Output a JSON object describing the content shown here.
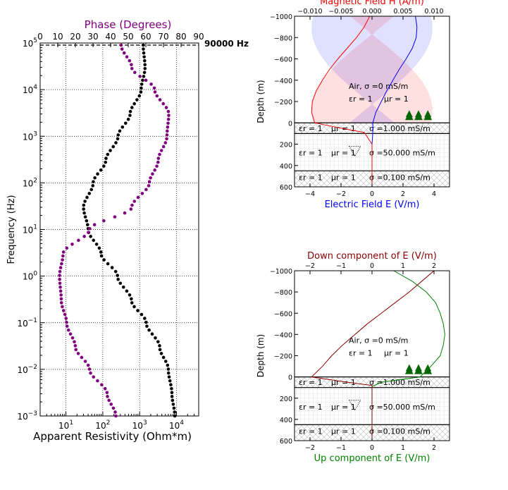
{
  "chart_data": [
    {
      "type": "scatter",
      "panel": "mt-sounding",
      "top_title": "Phase (Degrees)",
      "top_title_color": "#800080",
      "xlabel": "Apparent Resistivity (Ohm*m)",
      "ylabel": "Frequency (Hz)",
      "frequency_marker_label": "90000 Hz",
      "x_log_scale": true,
      "y_log_scale": true,
      "xlim": [
        2,
        40000
      ],
      "ylim": [
        0.001,
        100000
      ],
      "phase_lim": [
        0,
        90
      ],
      "x_tick_labels": [
        "10^1",
        "10^2",
        "10^3",
        "10^4"
      ],
      "y_tick_labels": [
        "10^-3",
        "10^-2",
        "10^-1",
        "10^0",
        "10^1",
        "10^2",
        "10^3",
        "10^4",
        "10^5"
      ],
      "phase_tick_labels": [
        "0",
        "10",
        "20",
        "30",
        "40",
        "50",
        "60",
        "70",
        "80",
        "90"
      ],
      "grid": true,
      "series": [
        {
          "color": "#000000",
          "x_axis": "apparent_resistivity",
          "points": [
            {
              "f": 0.001,
              "v": 9000
            },
            {
              "f": 0.003,
              "v": 7500
            },
            {
              "f": 0.01,
              "v": 6000
            },
            {
              "f": 0.03,
              "v": 3500
            },
            {
              "f": 0.1,
              "v": 1500
            },
            {
              "f": 0.3,
              "v": 600
            },
            {
              "f": 1,
              "v": 250
            },
            {
              "f": 3,
              "v": 90
            },
            {
              "f": 10,
              "v": 40
            },
            {
              "f": 30,
              "v": 30
            },
            {
              "f": 100,
              "v": 55
            },
            {
              "f": 300,
              "v": 120
            },
            {
              "f": 1000,
              "v": 260
            },
            {
              "f": 3000,
              "v": 550
            },
            {
              "f": 10000,
              "v": 1100
            },
            {
              "f": 30000,
              "v": 1400
            },
            {
              "f": 90000,
              "v": 1250
            }
          ]
        },
        {
          "color": "#800080",
          "x_axis": "phase",
          "points": [
            {
              "f": 0.001,
              "v": 43
            },
            {
              "f": 0.003,
              "v": 38
            },
            {
              "f": 0.01,
              "v": 28
            },
            {
              "f": 0.03,
              "v": 20
            },
            {
              "f": 0.1,
              "v": 15
            },
            {
              "f": 0.3,
              "v": 12
            },
            {
              "f": 1,
              "v": 11
            },
            {
              "f": 3,
              "v": 13
            },
            {
              "f": 10,
              "v": 28
            },
            {
              "f": 30,
              "v": 52
            },
            {
              "f": 100,
              "v": 62
            },
            {
              "f": 300,
              "v": 67
            },
            {
              "f": 1000,
              "v": 72
            },
            {
              "f": 3000,
              "v": 73
            },
            {
              "f": 10000,
              "v": 65
            },
            {
              "f": 30000,
              "v": 52
            },
            {
              "f": 90000,
              "v": 46
            }
          ]
        }
      ]
    },
    {
      "type": "line",
      "panel": "fields-top",
      "top_title": "Magnetic Field H (A/m)",
      "top_title_color": "#ff0000",
      "xlabel": "Electric Field E (V/m)",
      "xlabel_color": "#0000ff",
      "ylabel": "Depth (m)",
      "xlim": [
        -5,
        5
      ],
      "ylim": [
        600,
        -1000
      ],
      "toplim": [
        -0.0125,
        0.0125
      ],
      "x_tick_labels": [
        "−4",
        "−2",
        "0",
        "2",
        "4"
      ],
      "top_tick_labels": [
        "−0.010",
        "−0.005",
        "0.000",
        "0.005",
        "0.010"
      ],
      "y_tick_labels": [
        "−1000",
        "−800",
        "−600",
        "−400",
        "−200",
        "0",
        "200",
        "400",
        "600"
      ],
      "series": [
        {
          "name": "",
          "color": "#0000ff",
          "axis": "bottom",
          "points": [
            [
              2.8,
              -1000
            ],
            [
              2.9,
              -900
            ],
            [
              2.85,
              -800
            ],
            [
              2.6,
              -700
            ],
            [
              2.2,
              -600
            ],
            [
              1.75,
              -500
            ],
            [
              1.35,
              -400
            ],
            [
              0.95,
              -300
            ],
            [
              0.6,
              -200
            ],
            [
              0.25,
              -100
            ],
            [
              0.05,
              0
            ],
            [
              0.05,
              100
            ],
            [
              0.0,
              200
            ],
            [
              0.0,
              450
            ],
            [
              0.0,
              600
            ]
          ]
        },
        {
          "name": "",
          "color": "#ff0000",
          "axis": "bottom",
          "points": [
            [
              -0.15,
              -1000
            ],
            [
              -0.5,
              -900
            ],
            [
              -1.0,
              -800
            ],
            [
              -1.6,
              -700
            ],
            [
              -2.2,
              -600
            ],
            [
              -2.75,
              -500
            ],
            [
              -3.2,
              -400
            ],
            [
              -3.6,
              -300
            ],
            [
              -3.85,
              -200
            ],
            [
              -3.9,
              -100
            ],
            [
              -3.7,
              0
            ],
            [
              -2.0,
              50
            ],
            [
              -0.5,
              90
            ],
            [
              0.0,
              200
            ],
            [
              0.0,
              600
            ]
          ]
        }
      ],
      "layer_labels": {
        "air": {
          "name": "Air, σ =0 mS/m",
          "eps": "εr = 1",
          "mu": "μr = 1"
        },
        "layers": [
          {
            "eps": "εr = 1",
            "mu": "μr = 1",
            "sigma": "σ =1.000 mS/m"
          },
          {
            "eps": "εr = 1",
            "mu": "μr = 1",
            "sigma": "σ =50.000 mS/m"
          },
          {
            "eps": "εr = 1",
            "mu": "μr = 1",
            "sigma": "σ =0.100 mS/m"
          }
        ]
      },
      "layer_boundaries": [
        0,
        100,
        450
      ]
    },
    {
      "type": "line",
      "panel": "fields-bottom",
      "top_title": "Down component of E (V/m)",
      "top_title_color": "#8b0000",
      "xlabel": "Up component of E (V/m)",
      "xlabel_color": "#008000",
      "ylabel": "Depth (m)",
      "xlim": [
        -2.5,
        2.5
      ],
      "ylim": [
        600,
        -1000
      ],
      "toplim": [
        -2.5,
        2.5
      ],
      "x_tick_labels": [
        "−2",
        "−1",
        "0",
        "1",
        "2"
      ],
      "top_tick_labels": [
        "−2",
        "−1",
        "0",
        "1",
        "2"
      ],
      "y_tick_labels": [
        "−1000",
        "−800",
        "−600",
        "−400",
        "−200",
        "0",
        "200",
        "400",
        "600"
      ],
      "series": [
        {
          "name": "",
          "color": "#008000",
          "axis": "bottom",
          "points": [
            [
              0.7,
              -1000
            ],
            [
              1.3,
              -900
            ],
            [
              1.75,
              -800
            ],
            [
              2.05,
              -700
            ],
            [
              2.2,
              -600
            ],
            [
              2.3,
              -500
            ],
            [
              2.35,
              -400
            ],
            [
              2.3,
              -300
            ],
            [
              2.2,
              -200
            ],
            [
              1.9,
              -100
            ],
            [
              1.55,
              0
            ],
            [
              0.3,
              50
            ],
            [
              0.0,
              90
            ],
            [
              0.0,
              600
            ]
          ]
        },
        {
          "name": "",
          "color": "#8b0000",
          "axis": "top",
          "points": [
            [
              2.0,
              -1000
            ],
            [
              1.6,
              -900
            ],
            [
              1.2,
              -800
            ],
            [
              0.75,
              -700
            ],
            [
              0.3,
              -600
            ],
            [
              -0.15,
              -500
            ],
            [
              -0.55,
              -400
            ],
            [
              -0.95,
              -300
            ],
            [
              -1.3,
              -200
            ],
            [
              -1.6,
              -100
            ],
            [
              -1.95,
              0
            ],
            [
              -0.8,
              50
            ],
            [
              0.0,
              80
            ],
            [
              0.0,
              600
            ]
          ]
        }
      ],
      "layer_labels": {
        "air": {
          "name": "Air, σ =0 mS/m",
          "eps": "εr = 1",
          "mu": "μr = 1"
        },
        "layers": [
          {
            "eps": "εr = 1",
            "mu": "μr = 1",
            "sigma": "σ =1.000 mS/m"
          },
          {
            "eps": "εr = 1",
            "mu": "μr = 1",
            "sigma": "σ =50.000 mS/m"
          },
          {
            "eps": "εr = 1",
            "mu": "μr = 1",
            "sigma": "σ =0.100 mS/m"
          }
        ]
      },
      "layer_boundaries": [
        0,
        100,
        450
      ]
    }
  ]
}
